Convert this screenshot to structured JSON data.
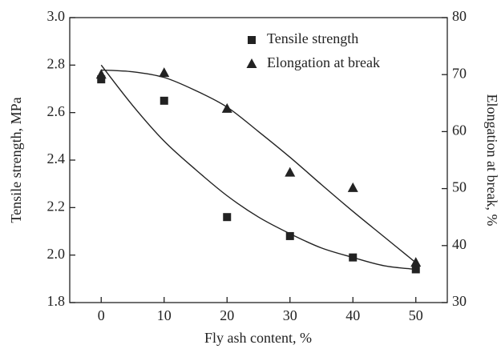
{
  "chart_data": {
    "type": "scatter",
    "xlabel": "Fly ash content, %",
    "ylabel": "Tensile strength, MPa",
    "y2label": "Elongation at break, %",
    "x": [
      0,
      10,
      20,
      30,
      40,
      50
    ],
    "fit_x": [
      0,
      5,
      10,
      15,
      20,
      25,
      30,
      35,
      40,
      45,
      50
    ],
    "series": [
      {
        "name": "Tensile strength",
        "color": "#222222",
        "marker": "square",
        "values": [
          2.74,
          2.65,
          2.16,
          2.08,
          1.99,
          1.94
        ],
        "fit": [
          2.8,
          2.63,
          2.48,
          2.36,
          2.25,
          2.16,
          2.09,
          2.03,
          1.99,
          1.955,
          1.94
        ]
      },
      {
        "name": "Elongation at break",
        "color": "#222222",
        "marker": "triangle",
        "axis": "y2",
        "values": [
          70,
          70.3,
          64,
          52.8,
          50.1,
          37
        ],
        "fit": [
          70.8,
          70.5,
          69.5,
          67.2,
          64.3,
          60,
          55.5,
          50.7,
          46,
          41.5,
          37
        ]
      }
    ],
    "xlim": [
      -5,
      55
    ],
    "xticks": [
      0,
      10,
      20,
      30,
      40,
      50
    ],
    "ylim": [
      1.8,
      3.0
    ],
    "yticks": [
      {
        "value": 1.8,
        "label": "1.8"
      },
      {
        "value": 2.0,
        "label": "2.0"
      },
      2.2,
      2.4,
      2.6,
      2.8,
      {
        "value": 3.0,
        "label": "3.0"
      }
    ],
    "y2lim": [
      30,
      80
    ],
    "y2ticks": [
      30,
      40,
      50,
      60,
      70,
      80
    ],
    "legend": "upper right"
  }
}
